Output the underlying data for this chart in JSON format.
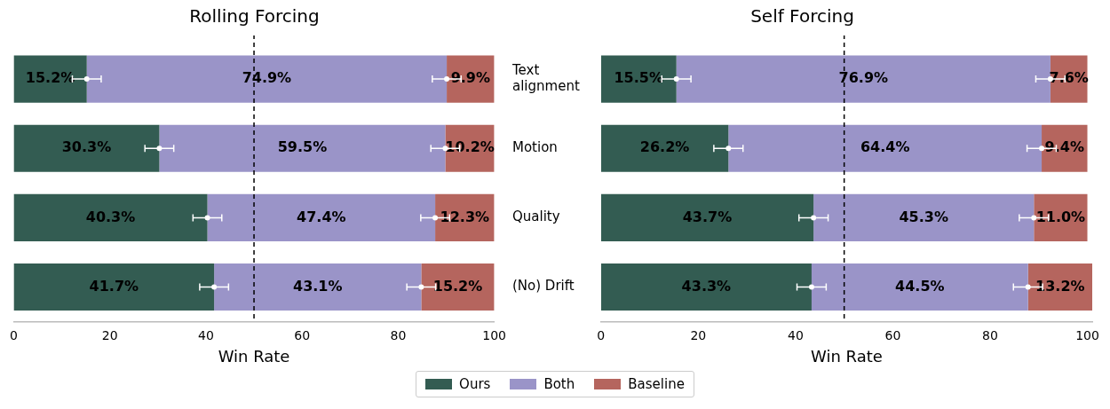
{
  "chart_data": [
    {
      "type": "bar",
      "orientation": "horizontal",
      "stacked": true,
      "title": "Rolling Forcing",
      "xlabel": "Win Rate",
      "categories": [
        "Text alignment",
        "Motion",
        "Quality",
        "(No) Drift"
      ],
      "xlim": [
        0,
        100
      ],
      "xticks": [
        0,
        20,
        40,
        60,
        80,
        100
      ],
      "tick_labels": "x",
      "grid": false,
      "legend": "bottom",
      "marker": "circle",
      "ref_lines": [
        {
          "axis": "x",
          "value": 50,
          "color": "#000000",
          "line_style": "dashed"
        }
      ],
      "series": [
        {
          "name": "Ours",
          "color": "#335c52",
          "values": [
            15.2,
            30.3,
            40.3,
            41.7
          ],
          "value_labels": [
            "15.2%",
            "30.3%",
            "40.3%",
            "41.7%"
          ]
        },
        {
          "name": "Both",
          "color": "#9a94c8",
          "values": [
            74.9,
            59.5,
            47.4,
            43.1
          ],
          "value_labels": [
            "74.9%",
            "59.5%",
            "47.4%",
            "43.1%"
          ]
        },
        {
          "name": "Baseline",
          "color": "#b5655e",
          "values": [
            9.9,
            10.2,
            12.3,
            15.2
          ],
          "value_labels": [
            "9.9%",
            "10.2%",
            "12.3%",
            "15.2%"
          ]
        },
        {
          "type": "scatter",
          "color": "#ffffff",
          "x": [
            "Text alignment",
            "Motion",
            "Quality",
            "(No) Drift"
          ],
          "values": [
            15.2,
            30.3,
            40.3,
            41.7
          ],
          "errors": [
            3,
            3,
            3,
            3
          ]
        },
        {
          "type": "scatter",
          "color": "#ffffff",
          "x": [
            "Text alignment",
            "Motion",
            "Quality",
            "(No) Drift"
          ],
          "values": [
            90.1,
            89.8,
            87.7,
            84.8
          ],
          "errors": [
            3,
            3,
            3,
            3
          ]
        }
      ]
    },
    {
      "type": "bar",
      "orientation": "horizontal",
      "stacked": true,
      "title": "Self Forcing",
      "xlabel": "Win Rate",
      "categories": [
        "Text alignment",
        "Motion",
        "Quality",
        "(No) Drift"
      ],
      "xlim": [
        0,
        101
      ],
      "xticks": [
        0,
        20,
        40,
        60,
        80,
        100
      ],
      "grid": false,
      "marker": "circle",
      "ref_lines": [
        {
          "axis": "x",
          "value": 50,
          "color": "#000000",
          "line_style": "dashed"
        }
      ],
      "series": [
        {
          "color": "#335c52",
          "values": [
            15.5,
            26.2,
            43.7,
            43.3
          ],
          "value_labels": [
            "15.5%",
            "26.2%",
            "43.7%",
            "43.3%"
          ]
        },
        {
          "color": "#9a94c8",
          "values": [
            76.9,
            64.4,
            45.3,
            44.5
          ],
          "value_labels": [
            "76.9%",
            "64.4%",
            "45.3%",
            "44.5%"
          ]
        },
        {
          "color": "#b5655e",
          "values": [
            7.6,
            9.4,
            11.0,
            13.2
          ],
          "value_labels": [
            "7.6%",
            "9.4%",
            "11.0%",
            "13.2%"
          ]
        },
        {
          "type": "scatter",
          "color": "#ffffff",
          "x": [
            "Text alignment",
            "Motion",
            "Quality",
            "(No) Drift"
          ],
          "values": [
            15.5,
            26.2,
            43.7,
            43.3
          ],
          "errors": [
            3,
            3,
            3,
            3
          ]
        },
        {
          "type": "scatter",
          "color": "#ffffff",
          "x": [
            "Text alignment",
            "Motion",
            "Quality",
            "(No) Drift"
          ],
          "values": [
            92.4,
            90.6,
            89.0,
            87.8
          ],
          "errors": [
            3,
            3,
            3,
            3
          ]
        }
      ]
    }
  ]
}
